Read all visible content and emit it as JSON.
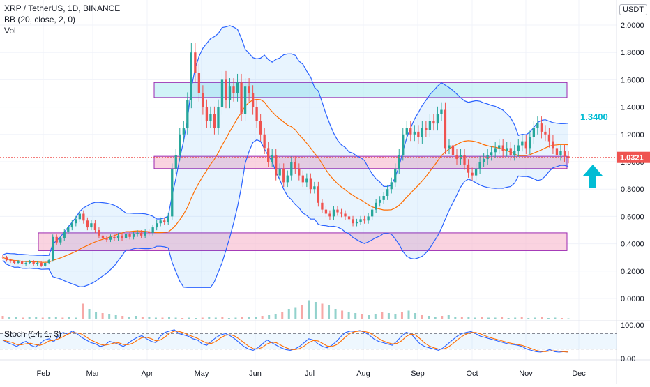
{
  "header": {
    "symbol": "XRP / TetherUS, 1D, BINANCE",
    "bb_indicator": "BB (20, close, 2, 0)",
    "vol_indicator": "Vol",
    "currency": "USDT"
  },
  "stoch": {
    "label": "Stoch (14, 1, 3)",
    "ticks": [
      "100.00",
      "0.00"
    ]
  },
  "price_axis": {
    "ticks": [
      "2.0000",
      "1.8000",
      "1.6000",
      "1.4000",
      "1.2000",
      "1.0000",
      "0.8000",
      "0.6000",
      "0.4000",
      "0.2000",
      "0.0000"
    ],
    "current_price": "1.0321"
  },
  "annotation": {
    "label": "1.3400"
  },
  "time_axis": {
    "ticks": [
      "Feb",
      "Mar",
      "Apr",
      "May",
      "Jun",
      "Jul",
      "Aug",
      "Sep",
      "Oct",
      "Nov",
      "Dec"
    ]
  },
  "colors": {
    "bull": "#26a69a",
    "bear": "#ef5350",
    "bb_band": "#2962ff",
    "bb_basis": "#ff6d00",
    "zone_blue": "#b2ebf2",
    "zone_pink": "#f8bbd0",
    "zone_border": "#9c27b0",
    "annotation": "#00bcd4"
  },
  "chart_data": {
    "type": "candlestick",
    "price_range": [
      0,
      2.0
    ],
    "zones": [
      {
        "from": 1.47,
        "to": 1.58,
        "color": "blue"
      },
      {
        "from": 0.95,
        "to": 1.04,
        "color": "pink"
      },
      {
        "from": 0.35,
        "to": 0.48,
        "color": "pink"
      }
    ],
    "prices": [
      0.3,
      0.28,
      0.27,
      0.26,
      0.27,
      0.25,
      0.26,
      0.27,
      0.25,
      0.26,
      0.24,
      0.26,
      0.28,
      0.45,
      0.41,
      0.44,
      0.49,
      0.52,
      0.55,
      0.58,
      0.62,
      0.57,
      0.52,
      0.55,
      0.5,
      0.46,
      0.44,
      0.43,
      0.45,
      0.44,
      0.46,
      0.44,
      0.47,
      0.45,
      0.47,
      0.48,
      0.46,
      0.49,
      0.48,
      0.52,
      0.55,
      0.57,
      0.56,
      0.6,
      0.95,
      1.05,
      1.2,
      1.25,
      1.45,
      1.8,
      1.65,
      1.5,
      1.4,
      1.3,
      1.35,
      1.25,
      1.4,
      1.6,
      1.45,
      1.55,
      1.5,
      1.58,
      1.35,
      1.55,
      1.5,
      1.4,
      1.3,
      1.2,
      1.1,
      1.0,
      1.05,
      0.9,
      0.95,
      0.85,
      0.9,
      1.0,
      0.95,
      0.9,
      0.85,
      0.88,
      0.8,
      0.82,
      0.7,
      0.65,
      0.62,
      0.6,
      0.65,
      0.63,
      0.62,
      0.6,
      0.58,
      0.55,
      0.56,
      0.58,
      0.57,
      0.6,
      0.65,
      0.7,
      0.72,
      0.75,
      0.8,
      0.85,
      0.95,
      1.05,
      1.2,
      1.25,
      1.2,
      1.22,
      1.18,
      1.25,
      1.23,
      1.3,
      1.28,
      1.35,
      1.38,
      1.1,
      1.12,
      1.05,
      1.02,
      1.05,
      0.98,
      0.92,
      0.9,
      0.95,
      1.0,
      1.02,
      1.05,
      1.07,
      1.1,
      1.12,
      1.08,
      1.1,
      1.05,
      1.08,
      1.12,
      1.15,
      1.1,
      1.18,
      1.25,
      1.28,
      1.22,
      1.2,
      1.15,
      1.1,
      1.05,
      1.08,
      1.04,
      1.03
    ],
    "stoch_k": [
      55,
      45,
      38,
      30,
      42,
      50,
      35,
      28,
      40,
      55,
      60,
      48,
      70,
      85,
      78,
      90,
      80,
      65,
      55,
      45,
      40,
      30,
      35,
      50,
      45,
      38,
      30,
      42,
      55,
      65,
      72,
      60,
      50,
      45,
      70,
      85,
      90,
      95,
      80,
      75,
      70,
      60,
      55,
      40,
      35,
      50,
      65,
      75,
      80,
      72,
      60,
      45,
      30,
      20,
      15,
      25,
      40,
      55,
      45,
      35,
      25,
      18,
      15,
      20,
      30,
      45,
      60,
      55,
      40,
      30,
      25,
      35,
      50,
      70,
      85,
      90,
      88,
      92,
      85,
      75,
      60,
      50,
      45,
      40,
      35,
      50,
      70,
      85,
      80,
      60,
      40,
      30,
      25,
      20,
      15,
      25,
      40,
      55,
      70,
      80,
      85,
      88,
      80,
      70,
      65,
      60,
      55,
      50,
      45,
      40,
      38,
      35,
      30,
      20,
      15,
      10,
      8,
      12,
      18,
      10,
      8,
      10,
      8
    ],
    "volume": [
      0.1,
      0.08,
      0.06,
      0.05,
      0.07,
      0.06,
      0.05,
      0.06,
      0.08,
      0.05,
      0.06,
      0.05,
      0.45,
      0.3,
      0.2,
      0.18,
      0.15,
      0.12,
      0.1,
      0.08,
      0.1,
      0.07,
      0.06,
      0.05,
      0.05,
      0.06,
      0.05,
      0.04,
      0.05,
      0.04,
      0.05,
      0.06,
      0.05,
      0.06,
      0.04,
      0.05,
      0.06,
      0.08,
      0.07,
      0.1,
      0.12,
      0.15,
      0.2,
      0.3,
      0.35,
      0.4,
      0.55,
      0.5,
      0.45,
      0.4,
      0.3,
      0.25,
      0.2,
      0.18,
      0.15,
      0.12,
      0.15,
      0.2,
      0.18,
      0.15,
      0.2,
      0.25,
      0.18,
      0.12,
      0.1,
      0.08,
      0.1,
      0.12,
      0.08,
      0.06,
      0.07,
      0.05,
      0.06,
      0.05,
      0.05,
      0.06,
      0.04,
      0.05,
      0.06,
      0.04,
      0.05,
      0.06,
      0.04,
      0.05,
      0.04,
      0.03
    ]
  }
}
